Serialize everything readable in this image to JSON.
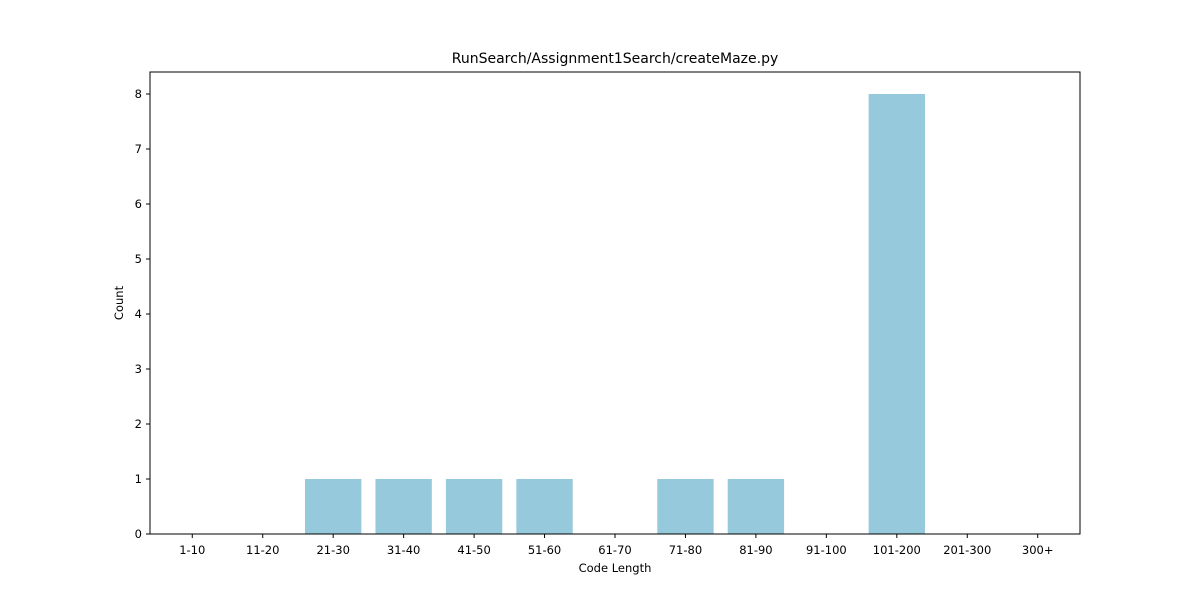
{
  "chart_data": {
    "type": "bar",
    "title": "RunSearch/Assignment1Search/createMaze.py",
    "xlabel": "Code Length",
    "ylabel": "Count",
    "categories": [
      "1-10",
      "11-20",
      "21-30",
      "31-40",
      "41-50",
      "51-60",
      "61-70",
      "71-80",
      "81-90",
      "91-100",
      "101-200",
      "201-300",
      "300+"
    ],
    "values": [
      0,
      0,
      1,
      1,
      1,
      1,
      0,
      1,
      1,
      0,
      8,
      0,
      0
    ],
    "ylim": [
      0,
      8.4
    ],
    "yticks": [
      0,
      1,
      2,
      3,
      4,
      5,
      6,
      7,
      8
    ],
    "bar_color": "#96c9dc",
    "grid": false,
    "legend": "none"
  }
}
